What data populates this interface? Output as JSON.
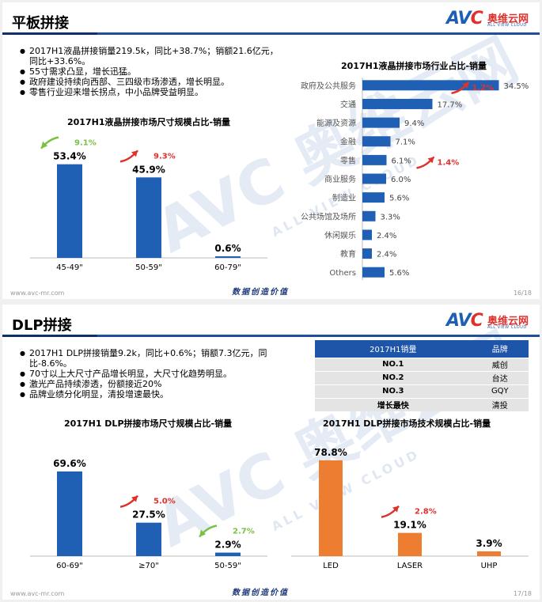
{
  "slide1": {
    "title": "平板拼接",
    "logo": {
      "text_a": "AV",
      "text_c": "C",
      "cn": "奥维云网",
      "en": "ALL VIEW CLOUD"
    },
    "watermark": {
      "text": "AVC 奥维云网",
      "en": "ALL VIEW CLOUD"
    },
    "bullets": [
      "2017H1液晶拼接销量219.5k，同比+38.7%；销额21.6亿元，同比+33.6%。",
      "55寸需求凸显，增长迅猛。",
      "政府建设持续向西部、三四级市场渗透，增长明显。",
      "零售行业迎来增长拐点，中小品牌受益明显。"
    ],
    "footer": {
      "left": "www.avc-mr.com",
      "mid": "数据创造价值",
      "right": "16/18"
    }
  },
  "slide2": {
    "title": "DLP拼接",
    "logo": {
      "text_a": "AV",
      "text_c": "C",
      "cn": "奥维云网",
      "en": "ALL VIEW CLOUD"
    },
    "watermark": {
      "text": "AVC 奥维云网",
      "en": "ALL VIEW CLOUD"
    },
    "bullets": [
      "2017H1 DLP拼接销量9.2k，同比+0.6%；销额7.3亿元，同比-8.6%。",
      "70寸以上大尺寸产品增长明显，大尺寸化趋势明显。",
      "激光产品持续渗透，份额接近20%",
      "品牌业绩分化明显，清投增速最快。"
    ],
    "table": {
      "headers": [
        "2017H1销量",
        "品牌"
      ],
      "rows": [
        [
          "NO.1",
          "威创"
        ],
        [
          "NO.2",
          "台达"
        ],
        [
          "NO.3",
          "GQY"
        ],
        [
          "增长最快",
          "清投"
        ]
      ]
    },
    "footer": {
      "left": "www.avc-mr.com",
      "mid": "数据创造价值",
      "right": "17/18"
    }
  },
  "colors": {
    "blue": "#1f5fb4",
    "orange": "#ed7d31",
    "green": "#7ac143",
    "red": "#e0322d"
  },
  "chart_data": [
    {
      "id": "lcd_size",
      "type": "bar",
      "title": "2017H1液晶拼接市场尺寸规模占比-销量",
      "categories": [
        "45-49\"",
        "50-59\"",
        "60-79\""
      ],
      "values": [
        53.4,
        45.9,
        0.6
      ],
      "value_labels": [
        "53.4%",
        "45.9%",
        "0.6%"
      ],
      "ylim": [
        0,
        60
      ],
      "changes": [
        {
          "category": "45-49\"",
          "label": "9.1%",
          "direction": "down",
          "color": "green"
        },
        {
          "category": "50-59\"",
          "label": "9.3%",
          "direction": "up",
          "color": "red"
        }
      ]
    },
    {
      "id": "lcd_industry",
      "type": "bar",
      "orientation": "horizontal",
      "title": "2017H1液晶拼接市场行业占比-销量",
      "categories": [
        "政府及公共服务",
        "交通",
        "能源及资源",
        "金融",
        "零售",
        "商业服务",
        "制造业",
        "公共场馆及场所",
        "休闲娱乐",
        "教育",
        "Others"
      ],
      "values": [
        34.5,
        17.7,
        9.4,
        7.1,
        6.1,
        6.0,
        5.6,
        3.3,
        2.4,
        2.4,
        5.6
      ],
      "value_labels": [
        "34.5%",
        "17.7%",
        "9.4%",
        "7.1%",
        "6.1%",
        "6.0%",
        "5.6%",
        "3.3%",
        "2.4%",
        "2.4%",
        "5.6%"
      ],
      "xlim": [
        0,
        36
      ],
      "changes": [
        {
          "category": "政府及公共服务",
          "label": "1.2%",
          "direction": "up",
          "color": "red"
        },
        {
          "category": "零售",
          "label": "1.4%",
          "direction": "up",
          "color": "red"
        }
      ]
    },
    {
      "id": "dlp_size",
      "type": "bar",
      "title": "2017H1 DLP拼接市场尺寸规模占比-销量",
      "categories": [
        "60-69\"",
        "≥70\"",
        "50-59\""
      ],
      "values": [
        69.6,
        27.5,
        2.9
      ],
      "value_labels": [
        "69.6%",
        "27.5%",
        "2.9%"
      ],
      "ylim": [
        0,
        80
      ],
      "changes": [
        {
          "category": "≥70\"",
          "label": "5.0%",
          "direction": "up",
          "color": "red"
        },
        {
          "category": "50-59\"",
          "label": "2.7%",
          "direction": "down",
          "color": "green"
        }
      ]
    },
    {
      "id": "dlp_tech",
      "type": "bar",
      "title": "2017H1 DLP拼接市场技术规模占比-销量",
      "categories": [
        "LED",
        "LASER",
        "UHP"
      ],
      "values": [
        78.8,
        19.1,
        3.9
      ],
      "value_labels": [
        "78.8%",
        "19.1%",
        "3.9%"
      ],
      "ylim": [
        0,
        80
      ],
      "changes": [
        {
          "category": "LASER",
          "label": "2.8%",
          "direction": "up",
          "color": "red"
        }
      ]
    }
  ]
}
